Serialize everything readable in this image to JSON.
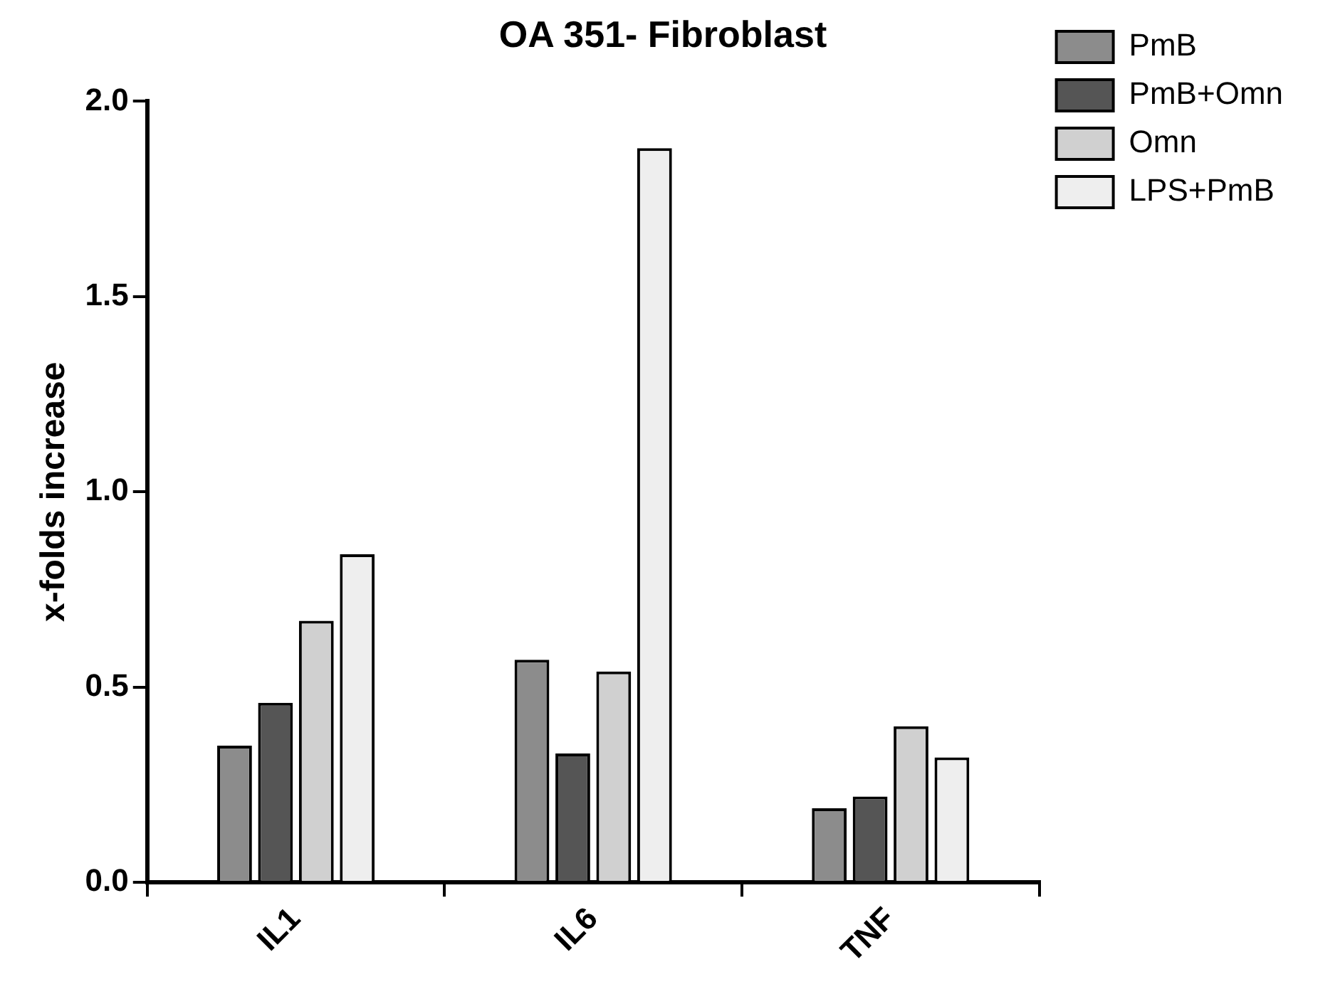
{
  "chart_data": {
    "type": "bar",
    "title": "OA 351- Fibroblast",
    "ylabel": "x-folds increase",
    "categories": [
      "IL1",
      "IL6",
      "TNF"
    ],
    "series": [
      {
        "name": "PmB",
        "color": "#8c8c8c",
        "values": [
          0.35,
          0.57,
          0.19
        ]
      },
      {
        "name": "PmB+Omn",
        "color": "#555555",
        "values": [
          0.46,
          0.33,
          0.22
        ]
      },
      {
        "name": "Omn",
        "color": "#d0d0d0",
        "values": [
          0.67,
          0.54,
          0.4
        ]
      },
      {
        "name": "LPS+PmB",
        "color": "#eeeeee",
        "values": [
          0.84,
          1.88,
          0.32
        ]
      }
    ],
    "ylim": [
      0,
      2.0
    ],
    "yticks": [
      {
        "value": 0,
        "label": "0.0"
      },
      {
        "value": 0.5,
        "label": "0.5"
      },
      {
        "value": 1,
        "label": "1.0"
      },
      {
        "value": 1.5,
        "label": "1.5"
      },
      {
        "value": 2,
        "label": "2.0"
      }
    ],
    "grid": false,
    "legend": "top right"
  }
}
